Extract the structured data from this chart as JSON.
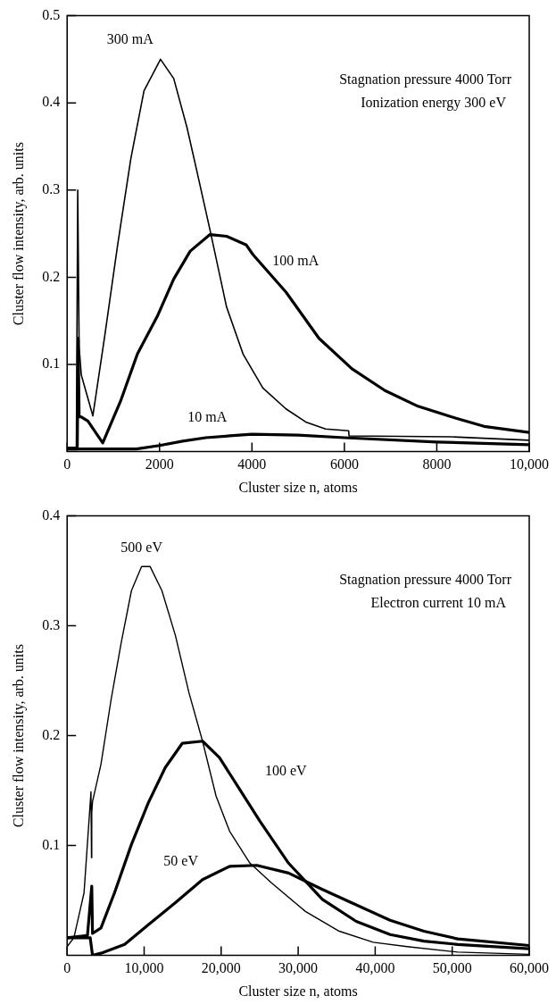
{
  "chart_data": [
    {
      "type": "line",
      "xlabel": "Cluster size n, atoms",
      "ylabel": "Cluster flow intensity, arb. units",
      "annotations": [
        "Stagnation pressure 4000 Torr",
        "Ionization energy 300 eV"
      ],
      "xlim": [
        0,
        10000
      ],
      "xticks": [
        0,
        2000,
        4000,
        6000,
        8000,
        {
          "value": 10000,
          "label": "10,000"
        }
      ],
      "ylim": [
        0,
        0.5
      ],
      "yticks": [
        0.1,
        0.2,
        0.3,
        0.4,
        0.5
      ],
      "grid": false,
      "legend": false,
      "marker": "none",
      "line_style": "solid",
      "series": [
        {
          "name": "300 mA",
          "color": "#000000",
          "x": [
            0,
            200,
            230,
            260,
            307,
            557,
            807,
            1093,
            1379,
            1664,
            2021,
            2307,
            2593,
            2807,
            3093,
            3450,
            3807,
            4236,
            4736,
            5164,
            5593,
            6093,
            6100,
            8307,
            10000
          ],
          "values": [
            0.005,
            0.005,
            0.3,
            0.12,
            0.088,
            0.041,
            0.13,
            0.237,
            0.336,
            0.414,
            0.45,
            0.428,
            0.372,
            0.322,
            0.254,
            0.166,
            0.112,
            0.073,
            0.049,
            0.034,
            0.026,
            0.024,
            0.018,
            0.017,
            0.013
          ]
        },
        {
          "name": "100 mA",
          "color": "#000000",
          "x": [
            0,
            220,
            240,
            260,
            300,
            450,
            771,
            1164,
            1521,
            1950,
            2307,
            2664,
            3093,
            3450,
            3879,
            4021,
            4736,
            5450,
            6164,
            6879,
            7593,
            8307,
            9021,
            10000
          ],
          "values": [
            0.003,
            0.003,
            0.13,
            0.04,
            0.04,
            0.035,
            0.01,
            0.059,
            0.112,
            0.155,
            0.198,
            0.23,
            0.249,
            0.247,
            0.237,
            0.226,
            0.183,
            0.13,
            0.095,
            0.07,
            0.052,
            0.04,
            0.029,
            0.022
          ]
        },
        {
          "name": "10 mA",
          "color": "#000000",
          "x": [
            0,
            1500,
            2000,
            2500,
            3000,
            4000,
            5000,
            6000,
            8000,
            10000
          ],
          "values": [
            0.003,
            0.003,
            0.007,
            0.012,
            0.016,
            0.02,
            0.019,
            0.016,
            0.011,
            0.008
          ]
        }
      ]
    },
    {
      "type": "line",
      "xlabel": "Cluster size n, atoms",
      "ylabel": "Cluster flow intensity, arb. units",
      "annotations": [
        "Stagnation pressure 4000 Torr",
        "Electron current 10 mA"
      ],
      "xlim": [
        0,
        60000
      ],
      "xticks": [
        0,
        {
          "value": 10000,
          "label": "10,000"
        },
        {
          "value": 20000,
          "label": "20,000"
        },
        {
          "value": 30000,
          "label": "30,000"
        },
        {
          "value": 40000,
          "label": "40,000"
        },
        {
          "value": 50000,
          "label": "50,000"
        },
        {
          "value": 60000,
          "label": "60,000"
        }
      ],
      "ylim": [
        0,
        0.4
      ],
      "yticks": [
        0.1,
        0.2,
        0.3,
        0.4
      ],
      "grid": false,
      "legend": false,
      "marker": "none",
      "line_style": "solid",
      "series": [
        {
          "name": "500 eV",
          "color": "#000000",
          "x": [
            0,
            879,
            2198,
            3100,
            3165,
            3200,
            3300,
            4396,
            5714,
            7033,
            8352,
            9670,
            10769,
            12308,
            14066,
            15824,
            17582,
            19341,
            21099,
            23736,
            26549,
            30945,
            35341,
            39736,
            44132,
            50725,
            60000
          ],
          "values": [
            0.008,
            0.016,
            0.057,
            0.149,
            0.089,
            0.13,
            0.14,
            0.174,
            0.233,
            0.285,
            0.332,
            0.354,
            0.354,
            0.332,
            0.291,
            0.239,
            0.195,
            0.145,
            0.113,
            0.084,
            0.066,
            0.04,
            0.022,
            0.012,
            0.008,
            0.003,
            0.001
          ]
        },
        {
          "name": "100 eV",
          "color": "#000000",
          "x": [
            0,
            2637,
            3200,
            3300,
            4396,
            6154,
            8352,
            10549,
            12747,
            14945,
            17582,
            19780,
            22418,
            25055,
            28747,
            33143,
            37538,
            41934,
            46330,
            50725,
            60000
          ],
          "values": [
            0.016,
            0.018,
            0.063,
            0.02,
            0.025,
            0.057,
            0.101,
            0.139,
            0.171,
            0.193,
            0.195,
            0.18,
            0.151,
            0.122,
            0.084,
            0.051,
            0.031,
            0.019,
            0.013,
            0.01,
            0.006
          ]
        },
        {
          "name": "50 eV",
          "color": "#000000",
          "x": [
            0,
            3000,
            3300,
            4396,
            7473,
            10549,
            14066,
            17582,
            21099,
            24615,
            28747,
            33143,
            37538,
            41934,
            46330,
            50725,
            60000
          ],
          "values": [
            0.016,
            0.016,
            0.0,
            0.002,
            0.01,
            0.028,
            0.048,
            0.069,
            0.081,
            0.082,
            0.075,
            0.06,
            0.046,
            0.032,
            0.022,
            0.015,
            0.009
          ]
        }
      ]
    }
  ]
}
